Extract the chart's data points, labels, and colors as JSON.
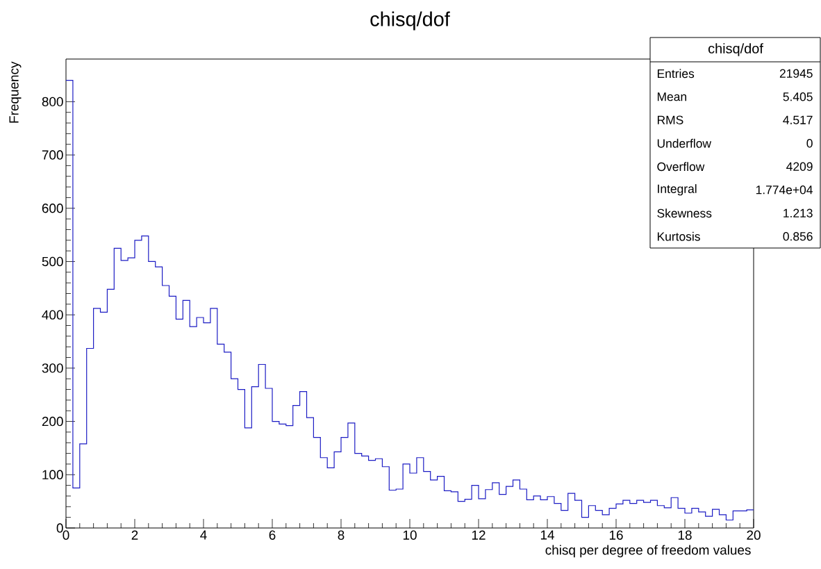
{
  "chart_data": {
    "type": "histogram",
    "title": "chisq/dof",
    "xlabel": "chisq per degree of freedom values",
    "ylabel": "Frequency",
    "color": "#1c1cc4",
    "bins": [
      0,
      0.2,
      0.4,
      0.6,
      0.8,
      1.0,
      1.2,
      1.4,
      1.6,
      1.8,
      2.0,
      2.2,
      2.4,
      2.6,
      2.8,
      3.0,
      3.2,
      3.4,
      3.6,
      3.8,
      4.0,
      4.2,
      4.4,
      4.6,
      4.8,
      5.0,
      5.2,
      5.4,
      5.6,
      5.8,
      6.0,
      6.2,
      6.4,
      6.6,
      6.8,
      7.0,
      7.2,
      7.4,
      7.6,
      7.8,
      8.0,
      8.2,
      8.4,
      8.6,
      8.8,
      9.0,
      9.2,
      9.4,
      9.6,
      9.8,
      10.0,
      10.2,
      10.4,
      10.6,
      10.8,
      11.0,
      11.2,
      11.4,
      11.6,
      11.8,
      12.0,
      12.2,
      12.4,
      12.6,
      12.8,
      13.0,
      13.2,
      13.4,
      13.6,
      13.8,
      14.0,
      14.2,
      14.4,
      14.6,
      14.8,
      15.0,
      15.2,
      15.4,
      15.6,
      15.8,
      16.0,
      16.2,
      16.4,
      16.6,
      16.8,
      17.0,
      17.2,
      17.4,
      17.6,
      17.8,
      18.0,
      18.2,
      18.4,
      18.6,
      18.8,
      19.0,
      19.2,
      19.4,
      19.6,
      19.8,
      20.0
    ],
    "values": [
      840,
      75,
      158,
      337,
      412,
      405,
      448,
      525,
      502,
      507,
      540,
      548,
      500,
      490,
      455,
      435,
      392,
      427,
      378,
      395,
      385,
      412,
      345,
      330,
      280,
      260,
      188,
      265,
      307,
      262,
      200,
      195,
      192,
      230,
      256,
      207,
      170,
      132,
      113,
      143,
      170,
      197,
      140,
      135,
      127,
      130,
      115,
      71,
      73,
      120,
      103,
      132,
      106,
      90,
      97,
      70,
      68,
      50,
      54,
      80,
      55,
      72,
      85,
      63,
      78,
      90,
      73,
      53,
      60,
      53,
      59,
      46,
      33,
      65,
      52,
      20,
      42,
      33,
      25,
      37,
      45,
      52,
      46,
      52,
      48,
      52,
      42,
      38,
      57,
      37,
      28,
      37,
      30,
      22,
      35,
      25,
      15,
      32,
      32,
      34
    ],
    "xlim": [
      0,
      20
    ],
    "ylim": [
      0,
      880
    ],
    "xticks": [
      0,
      2,
      4,
      6,
      8,
      10,
      12,
      14,
      16,
      18,
      20
    ],
    "yticks": [
      0,
      100,
      200,
      300,
      400,
      500,
      600,
      700,
      800
    ],
    "grid": false,
    "annotations": [
      "chisq/dof",
      "Entries",
      "21945",
      "Mean",
      "5.405",
      "RMS",
      "4.517",
      "Underflow",
      "0",
      "Overflow",
      "4209",
      "Integral",
      "1.774e+04",
      "Skewness",
      "1.213",
      "Kurtosis",
      "0.856"
    ]
  }
}
